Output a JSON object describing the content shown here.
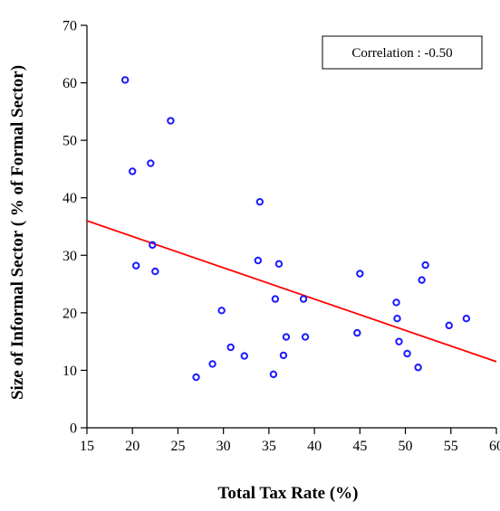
{
  "chart_data": {
    "type": "scatter",
    "title": "",
    "xlabel": "Total Tax Rate (%)",
    "ylabel": "Size of Informal Sector ( % of Formal Sector)",
    "xlim": [
      15,
      60
    ],
    "ylim": [
      0,
      70
    ],
    "xticks": [
      "15",
      "20",
      "25",
      "30",
      "35",
      "40",
      "45",
      "50",
      "55",
      "60"
    ],
    "yticks": [
      "0",
      "10",
      "20",
      "30",
      "40",
      "50",
      "60",
      "70"
    ],
    "annotation": "Correlation : -0.50",
    "legend_position": "top-right",
    "grid": false,
    "point_color": "#1a1aff",
    "line_color": "#ff0000",
    "trend_line": {
      "x": [
        15,
        60
      ],
      "y": [
        36,
        11.5
      ]
    },
    "points": [
      {
        "x": 19.2,
        "y": 60.5
      },
      {
        "x": 20.0,
        "y": 44.6
      },
      {
        "x": 22.0,
        "y": 46.0
      },
      {
        "x": 24.2,
        "y": 53.4
      },
      {
        "x": 20.4,
        "y": 28.2
      },
      {
        "x": 22.2,
        "y": 31.8
      },
      {
        "x": 22.5,
        "y": 27.2
      },
      {
        "x": 27.0,
        "y": 8.8
      },
      {
        "x": 28.8,
        "y": 11.1
      },
      {
        "x": 29.8,
        "y": 20.4
      },
      {
        "x": 30.8,
        "y": 14.0
      },
      {
        "x": 32.3,
        "y": 12.5
      },
      {
        "x": 33.8,
        "y": 29.1
      },
      {
        "x": 34.0,
        "y": 39.3
      },
      {
        "x": 35.5,
        "y": 9.3
      },
      {
        "x": 35.7,
        "y": 22.4
      },
      {
        "x": 36.1,
        "y": 28.5
      },
      {
        "x": 36.6,
        "y": 12.6
      },
      {
        "x": 36.9,
        "y": 15.8
      },
      {
        "x": 38.8,
        "y": 22.4
      },
      {
        "x": 39.0,
        "y": 15.8
      },
      {
        "x": 44.7,
        "y": 16.5
      },
      {
        "x": 45.0,
        "y": 26.8
      },
      {
        "x": 49.0,
        "y": 21.8
      },
      {
        "x": 49.1,
        "y": 19.0
      },
      {
        "x": 49.3,
        "y": 15.0
      },
      {
        "x": 50.2,
        "y": 12.9
      },
      {
        "x": 51.4,
        "y": 10.5
      },
      {
        "x": 51.8,
        "y": 25.7
      },
      {
        "x": 52.2,
        "y": 28.3
      },
      {
        "x": 54.8,
        "y": 17.8
      },
      {
        "x": 56.7,
        "y": 19.0
      }
    ]
  }
}
